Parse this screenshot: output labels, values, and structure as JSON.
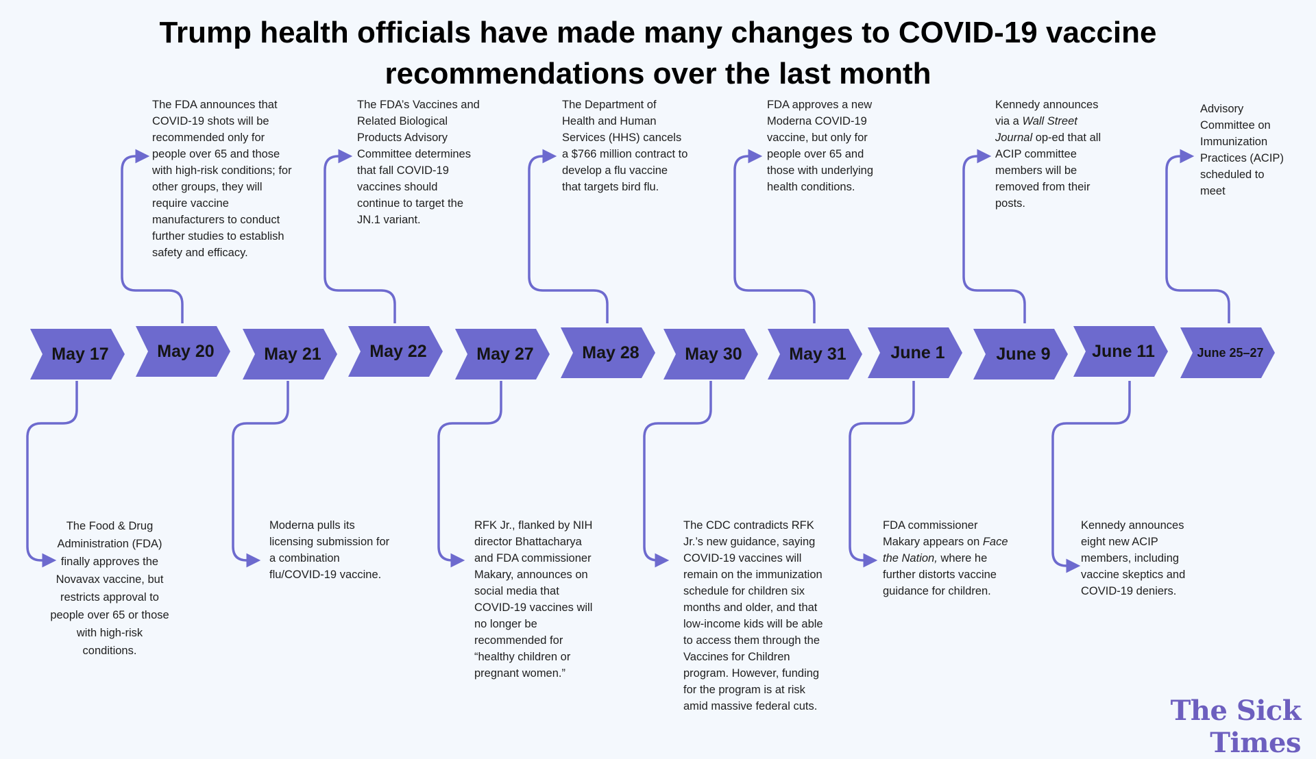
{
  "title": "Trump health officials have made many changes to COVID-19 vaccine recommendations over the last month",
  "brand": "The Sick Times",
  "colors": {
    "chevron": "#6d6ace",
    "connector": "#6d6ace",
    "background": "#f4f8fd"
  },
  "dates": [
    "May 17",
    "May 20",
    "May 21",
    "May 22",
    "May 27",
    "May 28",
    "May 30",
    "May 31",
    "June 1",
    "June 9",
    "June 11",
    "June 25–27"
  ],
  "events": {
    "may17": "The Food & Drug Administration (FDA) finally approves the Novavax vaccine, but restricts approval to people over 65 or those with high-risk conditions.",
    "may20": "The FDA announces that COVID-19 shots will be recommended only for people over 65 and those with high-risk conditions; for other groups, they will require vaccine manufacturers to conduct further studies to establish safety and efficacy.",
    "may21": "Moderna pulls its licensing submission for a combination flu/COVID-19 vaccine.",
    "may22": "The FDA’s Vaccines and Related Biological Products Advisory Committee determines that fall COVID-19 vaccines should continue to target the JN.1 variant.",
    "may27": "RFK Jr., flanked by NIH director Bhattacharya and FDA commissioner Makary, announces on social media that COVID-19 vaccines will no longer be recommended for “healthy children or pregnant women.”",
    "may28": "The Department of Health and Human Services (HHS) cancels a $766 million contract to develop a flu vaccine that targets bird flu.",
    "may30": "The CDC contradicts RFK Jr.’s new guidance, saying COVID-19 vaccines will remain on the immunization schedule for children six months and older, and that low-income kids will be able to access them through the Vaccines for Children program. However, funding for the program is at risk amid massive federal cuts.",
    "may31": "FDA approves a new Moderna COVID-19 vaccine, but only for people over 65 and those with underlying health conditions.",
    "june1": {
      "before": "FDA commissioner Makary appears on ",
      "italic": "Face the Nation,",
      "after": " where he further distorts vaccine guidance for children."
    },
    "june9": {
      "before": "Kennedy announces via a ",
      "italic": "Wall Street Journal",
      "after": " op-ed that all ACIP committee members will be removed from their posts."
    },
    "june11": "Kennedy announces eight new ACIP members, including vaccine skeptics and COVID-19 deniers.",
    "june25": "Advisory Committee on Immunization Practices (ACIP) scheduled to meet"
  }
}
